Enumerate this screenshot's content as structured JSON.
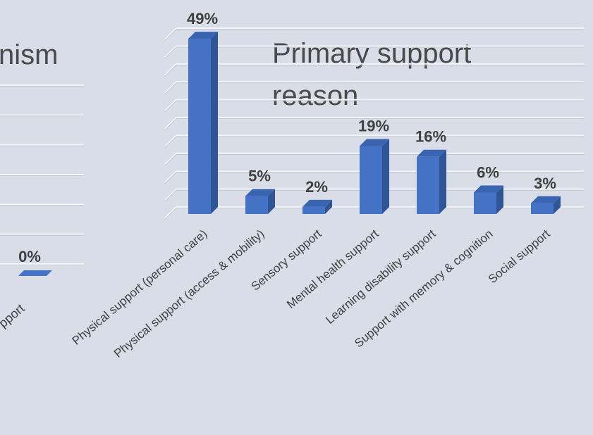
{
  "chart_data": [
    {
      "type": "bar",
      "title": "nism",
      "categories": [
        "pport"
      ],
      "values": [
        0
      ],
      "value_labels": [
        "0%"
      ],
      "ylim": [
        0,
        60
      ],
      "grid": true,
      "partial": true
    },
    {
      "type": "bar",
      "title": "Primary support reason",
      "title_lines": [
        "Primary support",
        "reason"
      ],
      "categories": [
        "Physical support (personal care)",
        "Physical support (access & mobility)",
        "Sensory support",
        "Mental health support",
        "Learning disability support",
        "Support with memory & cognition",
        "Social support"
      ],
      "values": [
        49,
        5,
        2,
        19,
        16,
        6,
        3
      ],
      "value_labels": [
        "49%",
        "5%",
        "2%",
        "19%",
        "16%",
        "6%",
        "3%"
      ],
      "ylim": [
        0,
        50
      ],
      "grid": true,
      "style": "3d-column"
    }
  ],
  "colors": {
    "background": "#d8dde8",
    "bar_front": "#4472c4",
    "bar_side": "#2f5597",
    "bar_top": "#3a63b0",
    "grid": "#f4f5f8",
    "label": "#404040",
    "title": "#4a4a4a"
  }
}
